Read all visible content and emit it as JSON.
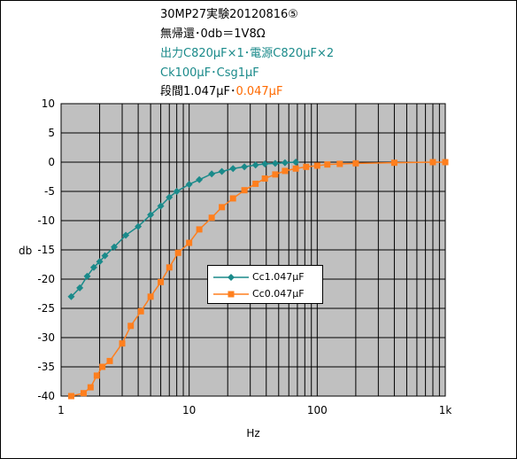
{
  "title_lines": {
    "line1": "30MP27実験20120816⑤",
    "line2": "無帰還･0db＝1V8Ω",
    "line3": "出力C820μF×1･電源C820μF×2",
    "line4": "Ck100μF･Csg1μF",
    "line5a": "段間1.047μF･",
    "line5b": "0.047μF"
  },
  "colors": {
    "series1": "#1a8a8a",
    "series2": "#ff7f1e",
    "plot_bg": "#c0c0c0",
    "grid": "#000000"
  },
  "chart_data": {
    "type": "line",
    "x_scale": "log",
    "xlabel": "Hz",
    "ylabel": "db",
    "xlim": [
      1,
      1000
    ],
    "ylim": [
      -40,
      10
    ],
    "x_tick_labels": [
      "1",
      "10",
      "100",
      "1k"
    ],
    "y_tick_labels": [
      "10",
      "5",
      "0",
      "-5",
      "-10",
      "-15",
      "-20",
      "-25",
      "-30",
      "-35",
      "-40"
    ],
    "grid": true,
    "legend_position": "center-right",
    "series": [
      {
        "name": "Cc1.047μF",
        "marker": "diamond",
        "x": [
          1.2,
          1.4,
          1.6,
          1.8,
          2,
          2.2,
          2.6,
          3.2,
          4,
          5,
          6,
          7,
          8,
          10,
          12,
          15,
          18,
          22,
          27,
          33,
          39,
          47,
          56,
          68
        ],
        "y": [
          -23,
          -21.5,
          -19.5,
          -18,
          -17,
          -16,
          -14.5,
          -12.5,
          -11,
          -9,
          -7.5,
          -6,
          -5,
          -3.8,
          -3,
          -2,
          -1.6,
          -1.1,
          -0.8,
          -0.5,
          -0.3,
          -0.2,
          -0.1,
          0
        ]
      },
      {
        "name": "Cc0.047μF",
        "marker": "square",
        "x": [
          1.2,
          1.5,
          1.7,
          1.9,
          2.1,
          2.4,
          3,
          3.5,
          4.2,
          5,
          6,
          7,
          8.2,
          10,
          12,
          15,
          18,
          22,
          27,
          33,
          39,
          47,
          56,
          68,
          82,
          100,
          120,
          150,
          200,
          400,
          800,
          1000
        ],
        "y": [
          -40,
          -39.5,
          -38.5,
          -36.5,
          -35,
          -34,
          -31,
          -28,
          -25.5,
          -23,
          -20.5,
          -18,
          -15.5,
          -13.8,
          -11.5,
          -9.5,
          -7.7,
          -6.2,
          -4.8,
          -3.7,
          -2.8,
          -2.1,
          -1.5,
          -1.1,
          -0.8,
          -0.6,
          -0.4,
          -0.3,
          -0.2,
          -0.1,
          0,
          0
        ]
      }
    ]
  }
}
